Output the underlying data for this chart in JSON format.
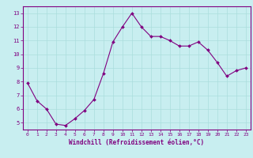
{
  "x": [
    0,
    1,
    2,
    3,
    4,
    5,
    6,
    7,
    8,
    9,
    10,
    11,
    12,
    13,
    14,
    15,
    16,
    17,
    18,
    19,
    20,
    21,
    22,
    23
  ],
  "y": [
    7.9,
    6.6,
    6.0,
    4.9,
    4.8,
    5.3,
    5.9,
    6.7,
    8.6,
    10.9,
    12.0,
    13.0,
    12.0,
    11.3,
    11.3,
    11.0,
    10.6,
    10.6,
    10.9,
    10.3,
    9.4,
    8.4,
    8.8,
    9.0
  ],
  "line_color": "#800080",
  "marker_color": "#800080",
  "bg_color": "#c8eef0",
  "grid_color": "#aadddd",
  "xlabel": "Windchill (Refroidissement éolien,°C)",
  "xlabel_color": "#800080",
  "tick_color": "#800080",
  "ylim": [
    4.5,
    13.5
  ],
  "xlim": [
    -0.5,
    23.5
  ],
  "yticks": [
    5,
    6,
    7,
    8,
    9,
    10,
    11,
    12,
    13
  ],
  "xticks": [
    0,
    1,
    2,
    3,
    4,
    5,
    6,
    7,
    8,
    9,
    10,
    11,
    12,
    13,
    14,
    15,
    16,
    17,
    18,
    19,
    20,
    21,
    22,
    23
  ]
}
